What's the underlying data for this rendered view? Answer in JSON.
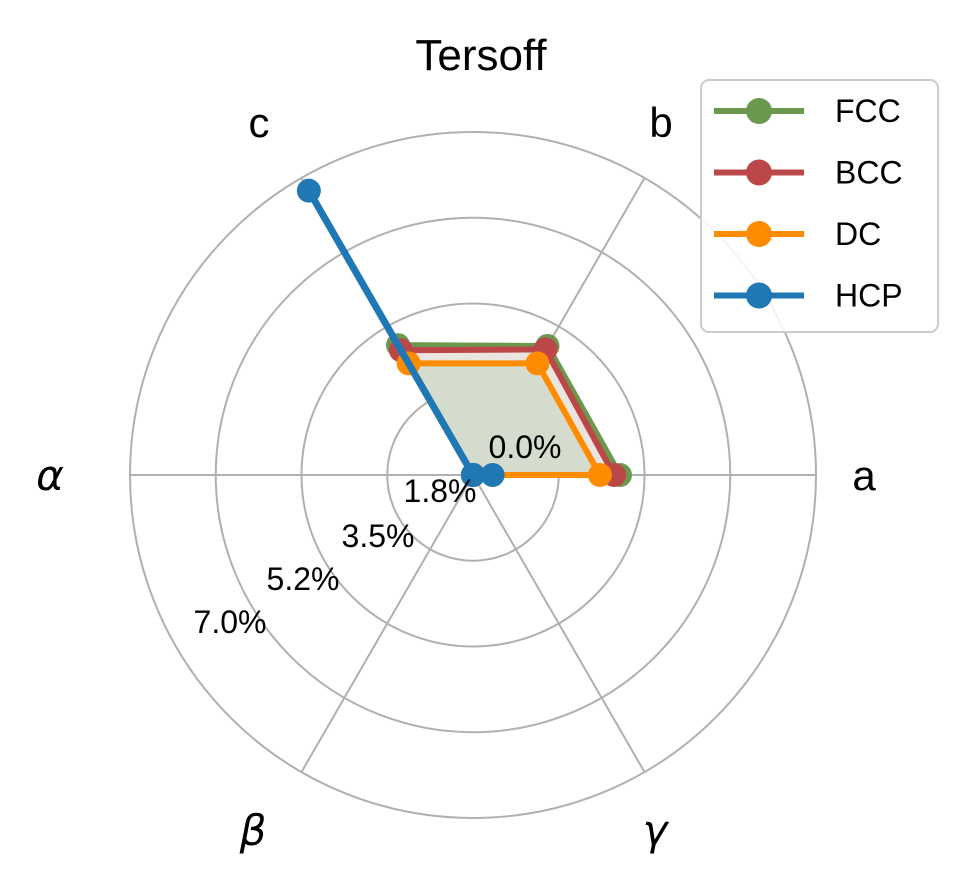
{
  "chart_data": {
    "type": "radar",
    "title": "Tersoff",
    "axes": [
      "a",
      "b",
      "c",
      "α",
      "β",
      "γ"
    ],
    "axis_angles_deg": [
      0,
      60,
      120,
      180,
      240,
      300
    ],
    "radial_ticks": [
      {
        "value": 0.0,
        "label": "0.0%"
      },
      {
        "value": 1.75,
        "label": "1.8%"
      },
      {
        "value": 3.5,
        "label": "3.5%"
      },
      {
        "value": 5.25,
        "label": "5.2%"
      },
      {
        "value": 7.0,
        "label": "7.0%"
      }
    ],
    "rlim": [
      0,
      7.0
    ],
    "unit": "%",
    "grid": true,
    "legend_position": "upper right",
    "series": [
      {
        "name": "FCC",
        "color": "#6a994e",
        "values": [
          3.0,
          3.04,
          3.06,
          0.0,
          0.0,
          0.0
        ],
        "fill": true
      },
      {
        "name": "BCC",
        "color": "#bc4749",
        "values": [
          2.88,
          2.96,
          2.94,
          0.0,
          0.0,
          0.0
        ],
        "fill": true
      },
      {
        "name": "DC",
        "color": "#ff8c00",
        "values": [
          2.59,
          2.63,
          2.63,
          0.0,
          0.0,
          0.0
        ],
        "fill": true
      },
      {
        "name": "HCP",
        "color": "#1f77b4",
        "values": [
          0.4,
          0.0,
          6.7,
          0.0,
          0.0,
          0.0
        ],
        "fill": false
      }
    ]
  },
  "legend": {
    "items": [
      {
        "label": "FCC",
        "color": "#6a994e"
      },
      {
        "label": "BCC",
        "color": "#bc4749"
      },
      {
        "label": "DC",
        "color": "#ff8c00"
      },
      {
        "label": "HCP",
        "color": "#1f77b4"
      }
    ]
  },
  "colors": {
    "grid": "#b0b0b0",
    "fill_inner": "#d6dccd",
    "fill_band": "#ebe5e0"
  }
}
